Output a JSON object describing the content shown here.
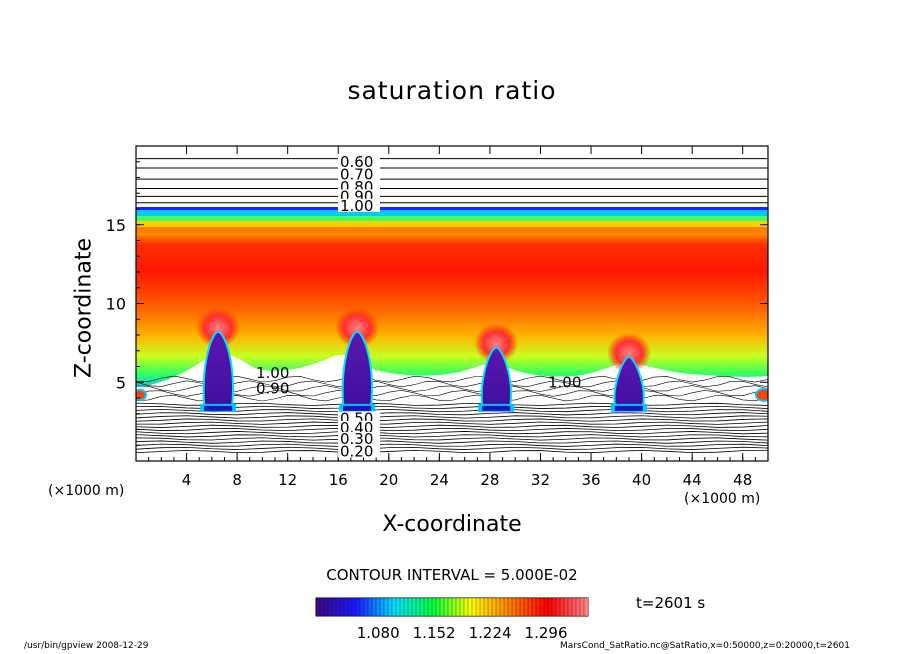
{
  "chart_data": {
    "type": "heatmap",
    "title": "saturation ratio",
    "xlabel": "X-coordinate",
    "ylabel": "Z-coordinate",
    "x_unit_label": "(×1000 m)",
    "y_unit_label": "(×1000 m)",
    "xlim": [
      0,
      50
    ],
    "ylim": [
      0,
      20
    ],
    "x_ticks": [
      "4",
      "8",
      "12",
      "16",
      "20",
      "24",
      "28",
      "32",
      "36",
      "40",
      "44",
      "48"
    ],
    "y_ticks": [
      "5",
      "10",
      "15"
    ],
    "contour_labels_upper": [
      "0.60",
      "0.70",
      "0.80",
      "0.90",
      "1.00"
    ],
    "contour_labels_lower": [
      "0.50",
      "0.40",
      "0.30",
      "0.20"
    ],
    "contour_labels_mid": [
      "1.00",
      "0.90",
      "1.00"
    ],
    "contour_interval": "CONTOUR INTERVAL = 5.000E-02",
    "colorbar_ticks": [
      "1.080",
      "1.152",
      "1.224",
      "1.296"
    ],
    "colorbar_range": [
      1.0,
      1.35
    ],
    "colormap": [
      "#3a0a8a",
      "#1a1aff",
      "#00e0ff",
      "#00ff40",
      "#ffff00",
      "#ff8000",
      "#ff0000",
      "#ff8080"
    ],
    "time_label": "t=2601 s",
    "convective_plumes_x": [
      6.5,
      17.5,
      28.5,
      39
    ],
    "plume_top_z": [
      8.2,
      8.2,
      7.2,
      6.6
    ]
  },
  "footer": {
    "left": "/usr/bin/gpview   2008-12-29",
    "right": "MarsCond_SatRatio.nc@SatRatio,x=0:50000,z=0:20000,t=2601"
  }
}
